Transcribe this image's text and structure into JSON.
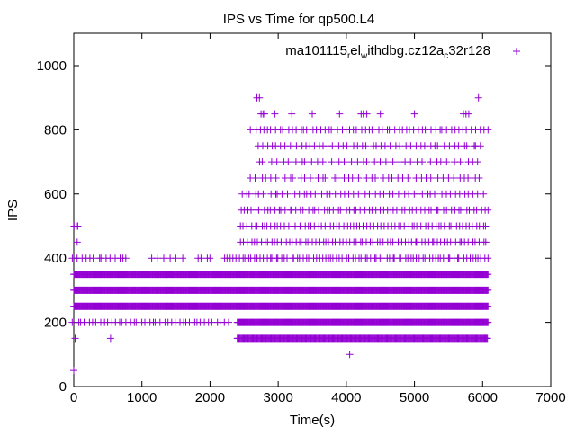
{
  "chart_data": {
    "type": "scatter",
    "title": "IPS vs Time for qp500.L4",
    "xlabel": "Time(s)",
    "ylabel": "IPS",
    "xlim": [
      0,
      7000
    ],
    "ylim": [
      0,
      1050
    ],
    "xticks": [
      0,
      1000,
      2000,
      3000,
      4000,
      5000,
      6000,
      7000
    ],
    "yticks": [
      0,
      200,
      400,
      600,
      800,
      1000
    ],
    "grid": false,
    "legend": {
      "position": "top-right",
      "label_parts": [
        "ma101115",
        "r",
        "el",
        "w",
        "ithdbg.cz12a",
        "c",
        "32r128"
      ]
    },
    "marker": "+",
    "color": "#9400d3",
    "series_name": "ma101115_rel_withdbg.cz12a_c32r128",
    "bands": [
      {
        "ips": 50,
        "runs": [
          [
            0,
            0,
            1
          ]
        ]
      },
      {
        "ips": 100,
        "runs": [
          [
            4050,
            4050,
            1
          ]
        ]
      },
      {
        "ips": 150,
        "runs": [
          [
            20,
            20,
            1
          ],
          [
            540,
            540,
            1
          ],
          [
            2400,
            6080,
            12
          ]
        ]
      },
      {
        "ips": 200,
        "runs": [
          [
            0,
            2300,
            55
          ],
          [
            2400,
            6080,
            10
          ]
        ]
      },
      {
        "ips": 250,
        "runs": [
          [
            0,
            6080,
            10
          ]
        ]
      },
      {
        "ips": 300,
        "runs": [
          [
            0,
            6080,
            10
          ]
        ]
      },
      {
        "ips": 350,
        "runs": [
          [
            0,
            6080,
            10
          ]
        ]
      },
      {
        "ips": 400,
        "runs": [
          [
            0,
            800,
            60
          ],
          [
            1150,
            1600,
            90
          ],
          [
            1820,
            2000,
            60
          ],
          [
            2200,
            6080,
            45
          ]
        ]
      },
      {
        "ips": 450,
        "runs": [
          [
            50,
            50,
            1
          ],
          [
            2450,
            6080,
            50
          ]
        ]
      },
      {
        "ips": 500,
        "runs": [
          [
            0,
            60,
            30
          ],
          [
            2450,
            6080,
            50
          ]
        ]
      },
      {
        "ips": 550,
        "runs": [
          [
            2450,
            6080,
            55
          ]
        ]
      },
      {
        "ips": 600,
        "runs": [
          [
            2450,
            6080,
            70
          ]
        ]
      },
      {
        "ips": 650,
        "runs": [
          [
            2600,
            6000,
            80
          ]
        ]
      },
      {
        "ips": 700,
        "runs": [
          [
            2700,
            6000,
            90
          ]
        ]
      },
      {
        "ips": 750,
        "runs": [
          [
            2700,
            6050,
            70
          ]
        ]
      },
      {
        "ips": 800,
        "runs": [
          [
            2600,
            6080,
            60
          ]
        ]
      },
      {
        "ips": 850,
        "runs": [
          [
            2750,
            2800,
            25
          ],
          [
            2950,
            2950,
            1
          ],
          [
            3200,
            3200,
            1
          ],
          [
            3500,
            3500,
            1
          ],
          [
            3900,
            3900,
            1
          ],
          [
            4200,
            4300,
            50
          ],
          [
            4500,
            4500,
            1
          ],
          [
            5000,
            5000,
            1
          ],
          [
            5700,
            5800,
            50
          ]
        ]
      },
      {
        "ips": 900,
        "runs": [
          [
            2680,
            2750,
            70
          ],
          [
            5940,
            5940,
            1
          ]
        ]
      }
    ]
  }
}
